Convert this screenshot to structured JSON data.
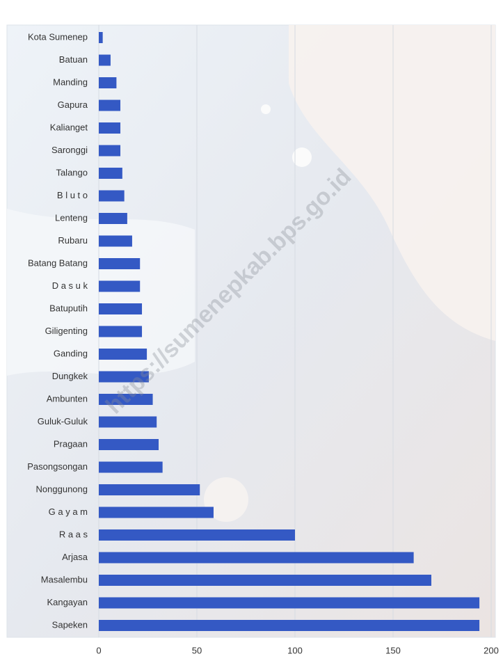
{
  "chart_data": {
    "type": "barh",
    "watermark": "https://sumenepkab.bps.go.id",
    "categories": [
      "Kota Sumenep",
      "Batuan",
      "Manding",
      "Gapura",
      "Kalianget",
      "Saronggi",
      "Talango",
      "B l u t o",
      "Lenteng",
      "Rubaru",
      "Batang Batang",
      "D a s u k",
      "Batuputih",
      "Giligenting",
      "Ganding",
      "Dungkek",
      "Ambunten",
      "Guluk-Guluk",
      "Pragaan",
      "Pasongsongan",
      "Nonggunong",
      "G a y a m",
      "R a a s",
      "Arjasa",
      "Masalembu",
      "Kangayan",
      "Sapeken"
    ],
    "values": [
      2,
      6,
      9,
      11,
      11,
      11,
      12,
      13,
      14.5,
      17,
      21,
      21,
      22,
      22,
      24.5,
      25.5,
      27.5,
      29.5,
      30.5,
      32.5,
      51.5,
      58.5,
      100,
      160.5,
      169.5,
      194,
      194
    ],
    "color": "#3459c4",
    "xlim": [
      0,
      200
    ],
    "xticks": [
      0,
      50,
      100,
      150,
      200
    ],
    "grid": true
  }
}
